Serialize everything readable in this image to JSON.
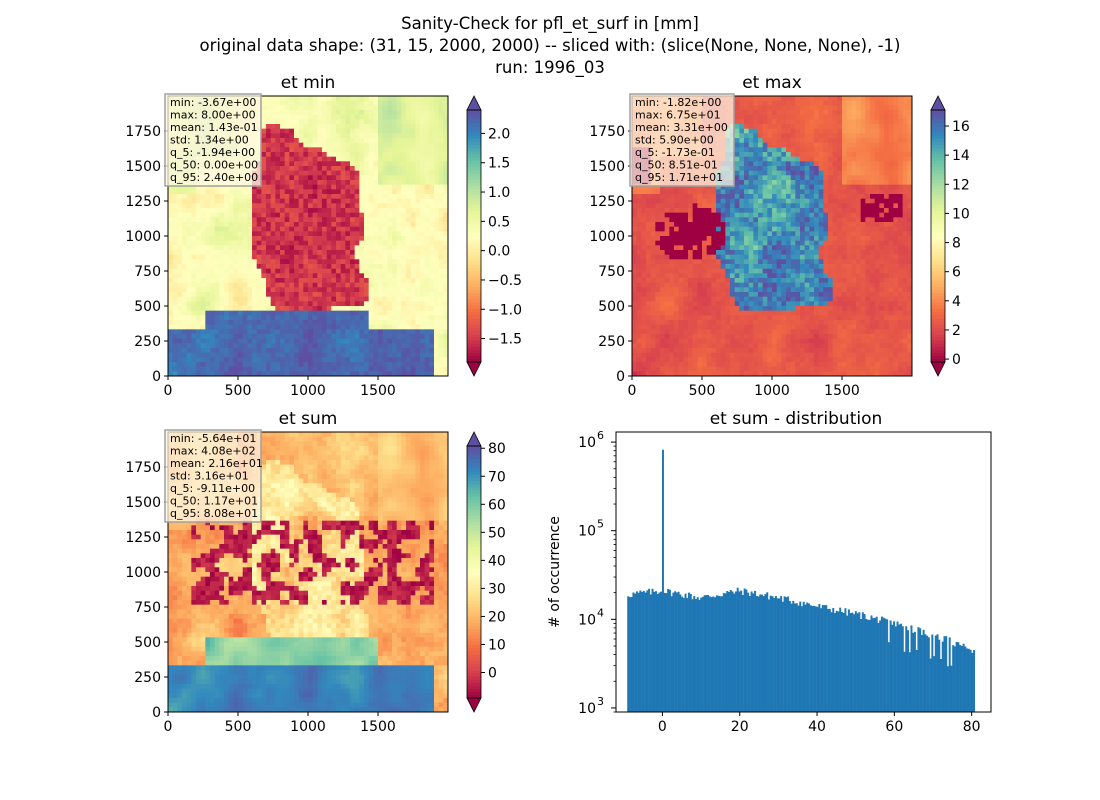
{
  "figure": {
    "suptitle_lines": [
      "Sanity-Check for pfl_et_surf in [mm]",
      "original data shape: (31, 15, 2000, 2000) -- sliced with: (slice(None, None, None), -1)",
      "run: 1996_03"
    ]
  },
  "colormap": {
    "name": "Spectral",
    "stops": [
      "#9e0142",
      "#d53e4f",
      "#f46d43",
      "#fdae61",
      "#fee08b",
      "#ffffbf",
      "#e6f598",
      "#abdda4",
      "#66c2a5",
      "#3288bd",
      "#5e4fa2"
    ]
  },
  "chart_data": [
    {
      "type": "heatmap",
      "title": "et min",
      "x_ticks": [
        0,
        500,
        1000,
        1500
      ],
      "y_ticks": [
        0,
        250,
        500,
        750,
        1000,
        1250,
        1500,
        1750
      ],
      "extent": [
        0,
        2000
      ],
      "colorbar": {
        "vmin": -1.9,
        "vmax": 2.4,
        "ticks": [
          -1.5,
          -1.0,
          -0.5,
          0.0,
          0.5,
          1.0,
          1.5,
          2.0
        ],
        "tick_labels": [
          "−1.5",
          "−1.0",
          "−0.5",
          "0.0",
          "0.5",
          "1.0",
          "1.5",
          "2.0"
        ],
        "extend": "both"
      },
      "stats": [
        "min: -3.67e+00",
        "max: 8.00e+00",
        "mean: 1.43e-01",
        "std: 1.34e+00",
        "q_5: -1.94e+00",
        "q_50: 0.00e+00",
        "q_95: 2.40e+00"
      ]
    },
    {
      "type": "heatmap",
      "title": "et max",
      "x_ticks": [
        0,
        500,
        1000,
        1500
      ],
      "y_ticks": [
        0,
        250,
        500,
        750,
        1000,
        1250,
        1500,
        1750
      ],
      "extent": [
        0,
        2000
      ],
      "colorbar": {
        "vmin": -0.2,
        "vmax": 17.1,
        "ticks": [
          0,
          2,
          4,
          6,
          8,
          10,
          12,
          14,
          16
        ],
        "tick_labels": [
          "0",
          "2",
          "4",
          "6",
          "8",
          "10",
          "12",
          "14",
          "16"
        ],
        "extend": "both"
      },
      "stats": [
        "min: -1.82e+00",
        "max: 6.75e+01",
        "mean: 3.31e+00",
        "std: 5.90e+00",
        "q_5: -1.73e-01",
        "q_50: 8.51e-01",
        "q_95: 1.71e+01"
      ]
    },
    {
      "type": "heatmap",
      "title": "et sum",
      "x_ticks": [
        0,
        500,
        1000,
        1500
      ],
      "y_ticks": [
        0,
        250,
        500,
        750,
        1000,
        1250,
        1500,
        1750
      ],
      "extent": [
        0,
        2000
      ],
      "colorbar": {
        "vmin": -9.1,
        "vmax": 80.8,
        "ticks": [
          0,
          10,
          20,
          30,
          40,
          50,
          60,
          70,
          80
        ],
        "tick_labels": [
          "0",
          "10",
          "20",
          "30",
          "40",
          "50",
          "60",
          "70",
          "80"
        ],
        "extend": "both"
      },
      "stats": [
        "min: -5.64e+01",
        "max: 4.08e+02",
        "mean: 2.16e+01",
        "std: 3.16e+01",
        "q_5: -9.11e+00",
        "q_50: 1.17e+01",
        "q_95: 8.08e+01"
      ]
    },
    {
      "type": "bar",
      "title": "et sum - distribution",
      "ylabel": "# of occurrence",
      "y_scale": "log",
      "ylim": [
        900,
        1300000
      ],
      "xlim": [
        -12,
        85
      ],
      "x_ticks": [
        0,
        20,
        40,
        60,
        80
      ],
      "y_ticks": [
        {
          "value": 1000,
          "base": "10",
          "exp": "3"
        },
        {
          "value": 10000,
          "base": "10",
          "exp": "4"
        },
        {
          "value": 100000,
          "base": "10",
          "exp": "5"
        },
        {
          "value": 1000000,
          "base": "10",
          "exp": "6"
        }
      ],
      "bar_color": "#1f77b4",
      "bins": {
        "start": -9.1,
        "end": 80.8,
        "count": 200
      },
      "spike": {
        "x": 0,
        "count": 820000
      },
      "hist_profile": [
        {
          "x": -9.1,
          "y": 19000
        },
        {
          "x": 0,
          "y": 21000
        },
        {
          "x": 10,
          "y": 17500
        },
        {
          "x": 20,
          "y": 21000
        },
        {
          "x": 30,
          "y": 17500
        },
        {
          "x": 40,
          "y": 14000
        },
        {
          "x": 50,
          "y": 11500
        },
        {
          "x": 60,
          "y": 9000
        },
        {
          "x": 70,
          "y": 6500
        },
        {
          "x": 80.8,
          "y": 4500
        }
      ]
    }
  ]
}
